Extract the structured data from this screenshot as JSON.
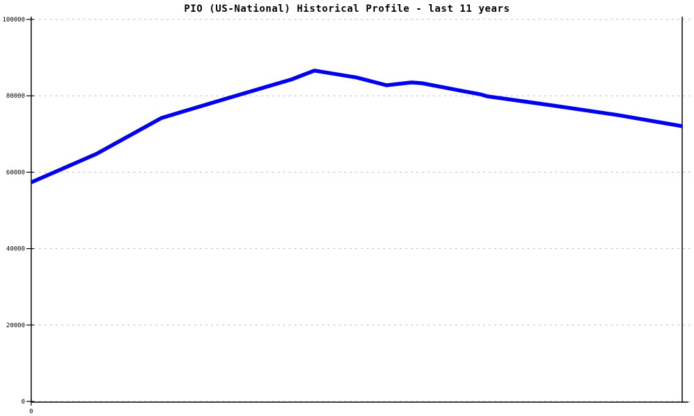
{
  "colors": {
    "line": "#0000ee",
    "grid": "#bdbdbd",
    "axis": "#000000",
    "background": "#ffffff",
    "title_text": "#000000"
  },
  "chart_data": {
    "type": "line",
    "title": "PIO (US-National) Historical Profile - last 11 years",
    "xlabel": "",
    "ylabel": "",
    "xlim": [
      0,
      10
    ],
    "ylim": [
      0,
      100000
    ],
    "grid": "horizontal-dashed",
    "legend_position": "none",
    "y_axis": {
      "ticks": [
        {
          "value": 0,
          "label": "0"
        },
        {
          "value": 20000,
          "label": "20000"
        },
        {
          "value": 40000,
          "label": "40000"
        },
        {
          "value": 60000,
          "label": "60000"
        },
        {
          "value": 80000,
          "label": "80000"
        },
        {
          "value": 100000,
          "label": "100000"
        }
      ]
    },
    "x_axis": {
      "ticks": [
        {
          "value": 0,
          "label": "0"
        }
      ]
    },
    "series": [
      {
        "name": "PIO (US-National)",
        "color": "#0000ee",
        "points": [
          {
            "x": 0,
            "y": 57350
          },
          {
            "x": 1,
            "y": 64800
          },
          {
            "x": 2,
            "y": 74200
          },
          {
            "x": 3,
            "y": 79300
          },
          {
            "x": 4,
            "y": 84300
          },
          {
            "x": 4.35,
            "y": 86600
          },
          {
            "x": 5,
            "y": 84800
          },
          {
            "x": 5.46,
            "y": 82750
          },
          {
            "x": 5.84,
            "y": 83500
          },
          {
            "x": 6,
            "y": 83300
          },
          {
            "x": 6.55,
            "y": 81500
          },
          {
            "x": 6.9,
            "y": 80400
          },
          {
            "x": 7,
            "y": 79900
          },
          {
            "x": 8,
            "y": 77500
          },
          {
            "x": 9,
            "y": 75000
          },
          {
            "x": 10,
            "y": 72050
          }
        ]
      }
    ]
  }
}
